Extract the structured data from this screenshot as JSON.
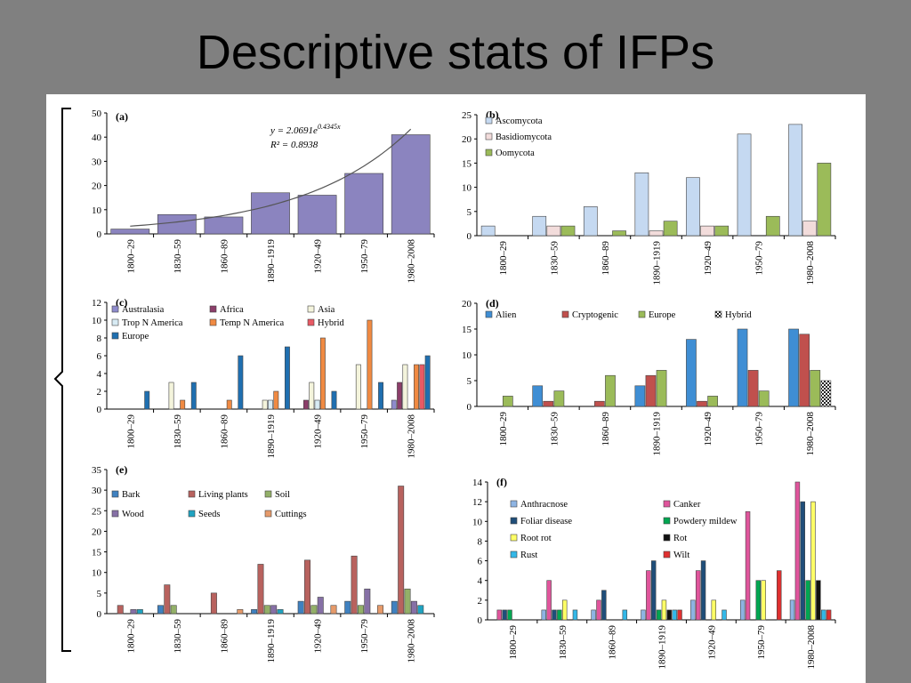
{
  "slide": {
    "title": "Descriptive stats of IFPs"
  },
  "chart_data": [
    {
      "id": "a",
      "label": "(a)",
      "type": "bar",
      "categories": [
        "1800–29",
        "1830–59",
        "1860–89",
        "1890–1919",
        "1920–49",
        "1950–79",
        "1980–2008"
      ],
      "series": [
        {
          "values": [
            2,
            8,
            7,
            17,
            16,
            25,
            41
          ],
          "color": "#8b84bf"
        }
      ],
      "ylim": [
        0,
        50
      ],
      "yticks": [
        0,
        10,
        20,
        30,
        40,
        50
      ],
      "trendline": {
        "type": "exponential",
        "a": 2.0691,
        "b": 0.4345,
        "equation": "y = 2.0691e",
        "exponent": "0.4345x",
        "r2": "R² = 0.8938"
      },
      "legend": "none"
    },
    {
      "id": "b",
      "label": "(b)",
      "type": "bar",
      "categories": [
        "1800–29",
        "1830–59",
        "1860–89",
        "1890–1919",
        "1920–49",
        "1950–79",
        "1980–2008"
      ],
      "series": [
        {
          "name": "Ascomycota",
          "values": [
            2,
            4,
            6,
            13,
            12,
            21,
            23
          ],
          "color": "#c5d9f1"
        },
        {
          "name": "Basidiomycota",
          "values": [
            0,
            2,
            0,
            1,
            2,
            0,
            3
          ],
          "color": "#f2dcdb"
        },
        {
          "name": "Oomycota",
          "values": [
            0,
            2,
            1,
            3,
            2,
            4,
            15
          ],
          "color": "#9bbb59"
        }
      ],
      "ylim": [
        0,
        25
      ],
      "yticks": [
        0,
        5,
        10,
        15,
        20,
        25
      ],
      "legend": "top-left"
    },
    {
      "id": "c",
      "label": "(c)",
      "type": "bar",
      "categories": [
        "1800–29",
        "1830–59",
        "1860–89",
        "1890–1919",
        "1920–49",
        "1950–79",
        "1980–2008"
      ],
      "series": [
        {
          "name": "Australasia",
          "values": [
            0,
            0,
            0,
            0,
            0,
            0,
            1
          ],
          "color": "#8e8bcc"
        },
        {
          "name": "Africa",
          "values": [
            0,
            0,
            0,
            0,
            1,
            0,
            3
          ],
          "color": "#8c3e6a"
        },
        {
          "name": "Asia",
          "values": [
            0,
            3,
            0,
            1,
            3,
            5,
            5
          ],
          "color": "#f4f4dc"
        },
        {
          "name": "Trop N America",
          "values": [
            0,
            0,
            0,
            1,
            1,
            0,
            0
          ],
          "color": "#d8ebf4"
        },
        {
          "name": "Temp N America",
          "values": [
            0,
            1,
            1,
            2,
            8,
            10,
            5
          ],
          "color": "#f08a42"
        },
        {
          "name": "Hybrid",
          "values": [
            0,
            0,
            0,
            0,
            0,
            0,
            5
          ],
          "color": "#e85a64"
        },
        {
          "name": "Europe",
          "values": [
            2,
            3,
            6,
            7,
            2,
            3,
            6
          ],
          "color": "#1f6fb0"
        }
      ],
      "ylim": [
        0,
        12
      ],
      "yticks": [
        0,
        2,
        4,
        6,
        8,
        10,
        12
      ],
      "legend": "top"
    },
    {
      "id": "d",
      "label": "(d)",
      "type": "bar",
      "categories": [
        "1800–29",
        "1830–59",
        "1860–89",
        "1890–1919",
        "1920–49",
        "1950–79",
        "1980–2008"
      ],
      "series": [
        {
          "name": "Alien",
          "values": [
            0,
            4,
            0,
            4,
            13,
            15,
            15
          ],
          "color": "#3f8ed4"
        },
        {
          "name": "Cryptogenic",
          "values": [
            0,
            1,
            1,
            6,
            1,
            7,
            14
          ],
          "color": "#c0504d"
        },
        {
          "name": "Europe",
          "values": [
            2,
            3,
            6,
            7,
            2,
            3,
            7
          ],
          "color": "#9bbb59"
        },
        {
          "name": "Hybrid",
          "values": [
            0,
            0,
            0,
            0,
            0,
            0,
            5
          ],
          "color": "#222222",
          "pattern": "checker"
        }
      ],
      "ylim": [
        0,
        20
      ],
      "yticks": [
        0,
        5,
        10,
        15,
        20
      ],
      "legend": "top"
    },
    {
      "id": "e",
      "label": "(e)",
      "type": "bar",
      "categories": [
        "1800–29",
        "1830–59",
        "1860–89",
        "1890–1919",
        "1920–49",
        "1950–79",
        "1980–2008"
      ],
      "series": [
        {
          "name": "Bark",
          "values": [
            0,
            2,
            0,
            1,
            3,
            3,
            3
          ],
          "color": "#3f81c0"
        },
        {
          "name": "Living plants",
          "values": [
            2,
            7,
            5,
            12,
            13,
            14,
            31
          ],
          "color": "#b8625e"
        },
        {
          "name": "Soil",
          "values": [
            0,
            2,
            0,
            2,
            2,
            2,
            6
          ],
          "color": "#93b068"
        },
        {
          "name": "Wood",
          "values": [
            1,
            0,
            0,
            2,
            4,
            6,
            3
          ],
          "color": "#8670a6"
        },
        {
          "name": "Seeds",
          "values": [
            1,
            0,
            0,
            1,
            0,
            0,
            2
          ],
          "color": "#1fa3c1"
        },
        {
          "name": "Cuttings",
          "values": [
            0,
            0,
            1,
            0,
            2,
            2,
            0
          ],
          "color": "#e69a6a"
        }
      ],
      "ylim": [
        0,
        35
      ],
      "yticks": [
        0,
        5,
        10,
        15,
        20,
        25,
        30,
        35
      ],
      "legend": "top-left"
    },
    {
      "id": "f",
      "label": "(f)",
      "type": "bar",
      "categories": [
        "1800–29",
        "1830–59",
        "1860–89",
        "1890–1919",
        "1920–49",
        "1950–79",
        "1980–2008"
      ],
      "series": [
        {
          "name": "Anthracnose",
          "values": [
            0,
            1,
            1,
            1,
            2,
            2,
            2
          ],
          "color": "#8eb4e3"
        },
        {
          "name": "Canker",
          "values": [
            1,
            4,
            2,
            5,
            5,
            11,
            14
          ],
          "color": "#e0559c"
        },
        {
          "name": "Foliar disease",
          "values": [
            1,
            1,
            3,
            6,
            6,
            0,
            12
          ],
          "color": "#1f4e79"
        },
        {
          "name": "Powdery mildew",
          "values": [
            1,
            1,
            0,
            1,
            0,
            4,
            4
          ],
          "color": "#00a651"
        },
        {
          "name": "Root rot",
          "values": [
            0,
            2,
            0,
            2,
            2,
            4,
            12
          ],
          "color": "#ffff66"
        },
        {
          "name": "Rot",
          "values": [
            0,
            0,
            0,
            1,
            0,
            0,
            4
          ],
          "color": "#111111"
        },
        {
          "name": "Rust",
          "values": [
            0,
            1,
            1,
            1,
            1,
            0,
            1
          ],
          "color": "#33b8e8"
        },
        {
          "name": "Wilt",
          "values": [
            0,
            0,
            0,
            1,
            0,
            5,
            1
          ],
          "color": "#e03030"
        }
      ],
      "ylim": [
        0,
        14
      ],
      "yticks": [
        0,
        2,
        4,
        6,
        8,
        10,
        12,
        14
      ],
      "legend": "top"
    }
  ]
}
